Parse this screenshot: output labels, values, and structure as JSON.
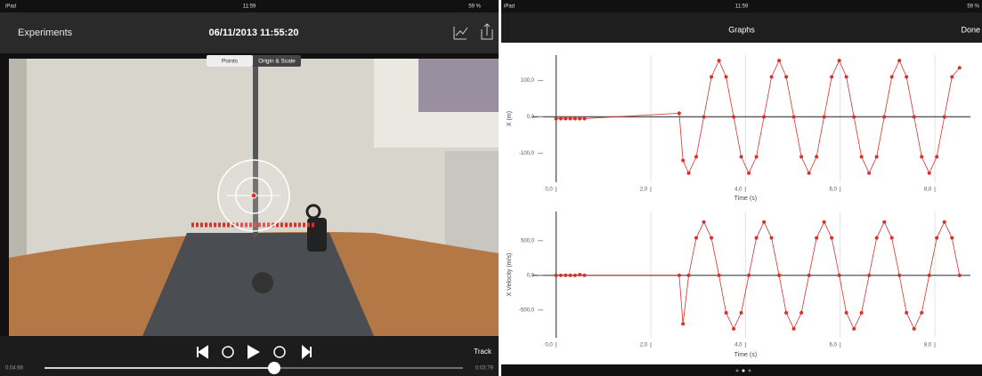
{
  "left": {
    "status": {
      "device": "iPad",
      "time": "11:59",
      "battery": "59 %"
    },
    "nav": {
      "back": "Experiments",
      "title": "06/11/2013 11:55:20"
    },
    "segments": [
      "Points",
      "Origin & Scale"
    ],
    "track": "Track",
    "elapsed": "0:04:66",
    "remaining": "0:03:79"
  },
  "right": {
    "status": {
      "device": "iPad",
      "time": "11:59",
      "battery": "59 %"
    },
    "nav": {
      "title": "Graphs",
      "done": "Done"
    }
  },
  "chart_data": [
    {
      "type": "line",
      "xlabel": "Time (s)",
      "ylabel": "X (m)",
      "color": "#d9302c",
      "x": [
        0,
        0.1,
        0.2,
        0.3,
        0.4,
        0.5,
        0.6,
        2.6,
        2.68,
        2.8,
        2.96,
        3.12,
        3.28,
        3.44,
        3.59,
        3.75,
        3.91,
        4.07,
        4.23,
        4.39,
        4.55,
        4.71,
        4.86,
        5.02,
        5.18,
        5.34,
        5.5,
        5.66,
        5.82,
        5.98,
        6.13,
        6.29,
        6.45,
        6.61,
        6.77,
        6.93,
        7.09,
        7.25,
        7.4,
        7.56,
        7.72,
        7.88,
        8.04,
        8.2,
        8.36,
        8.52
      ],
      "values": [
        -5,
        -5,
        -5,
        -5,
        -5,
        -5,
        -5,
        10,
        -120,
        -155,
        -110,
        0,
        110,
        155,
        110,
        0,
        -110,
        -155,
        -110,
        0,
        110,
        155,
        110,
        0,
        -110,
        -155,
        -110,
        0,
        110,
        155,
        110,
        0,
        -110,
        -155,
        -110,
        0,
        110,
        155,
        110,
        0,
        -110,
        -155,
        -110,
        0,
        110,
        135
      ],
      "xlim": [
        -0.5,
        8.75
      ],
      "ylim": [
        -180,
        170
      ],
      "xticks": [
        {
          "value": 0,
          "label": "0,0"
        },
        {
          "value": 2,
          "label": "2,0"
        },
        {
          "value": 4,
          "label": "4,0"
        },
        {
          "value": 6,
          "label": "6,0"
        },
        {
          "value": 8,
          "label": "8,0"
        }
      ],
      "yticks": [
        {
          "value": 100,
          "label": "100,0"
        },
        {
          "value": 0,
          "label": "0,0"
        },
        {
          "value": -100,
          "label": "-100,0"
        }
      ]
    },
    {
      "type": "line",
      "xlabel": "Time (s)",
      "ylabel": "X Velocity (m/s)",
      "color": "#d9302c",
      "x": [
        0,
        0.1,
        0.2,
        0.3,
        0.4,
        0.5,
        0.6,
        2.6,
        2.68,
        2.8,
        2.96,
        3.12,
        3.28,
        3.44,
        3.59,
        3.75,
        3.91,
        4.07,
        4.23,
        4.39,
        4.55,
        4.71,
        4.86,
        5.02,
        5.18,
        5.34,
        5.5,
        5.66,
        5.82,
        5.98,
        6.13,
        6.29,
        6.45,
        6.61,
        6.77,
        6.93,
        7.09,
        7.25,
        7.4,
        7.56,
        7.72,
        7.88,
        8.04,
        8.2,
        8.36,
        8.52
      ],
      "values": [
        0,
        0,
        0,
        0,
        0,
        10,
        0,
        0,
        -700,
        0,
        540,
        770,
        540,
        0,
        -540,
        -770,
        -540,
        0,
        540,
        770,
        540,
        0,
        -540,
        -770,
        -540,
        0,
        540,
        770,
        540,
        0,
        -540,
        -770,
        -540,
        0,
        540,
        770,
        540,
        0,
        -540,
        -770,
        -540,
        0,
        540,
        770,
        540,
        0
      ],
      "xlim": [
        -0.5,
        8.75
      ],
      "ylim": [
        -900,
        920
      ],
      "xticks": [
        {
          "value": 0,
          "label": "0,0"
        },
        {
          "value": 2,
          "label": "2,0"
        },
        {
          "value": 4,
          "label": "4,0"
        },
        {
          "value": 6,
          "label": "6,0"
        },
        {
          "value": 8,
          "label": "8,0"
        }
      ],
      "yticks": [
        {
          "value": 500,
          "label": "500,0"
        },
        {
          "value": 0,
          "label": "0,0"
        },
        {
          "value": -500,
          "label": "-500,0"
        }
      ]
    }
  ]
}
